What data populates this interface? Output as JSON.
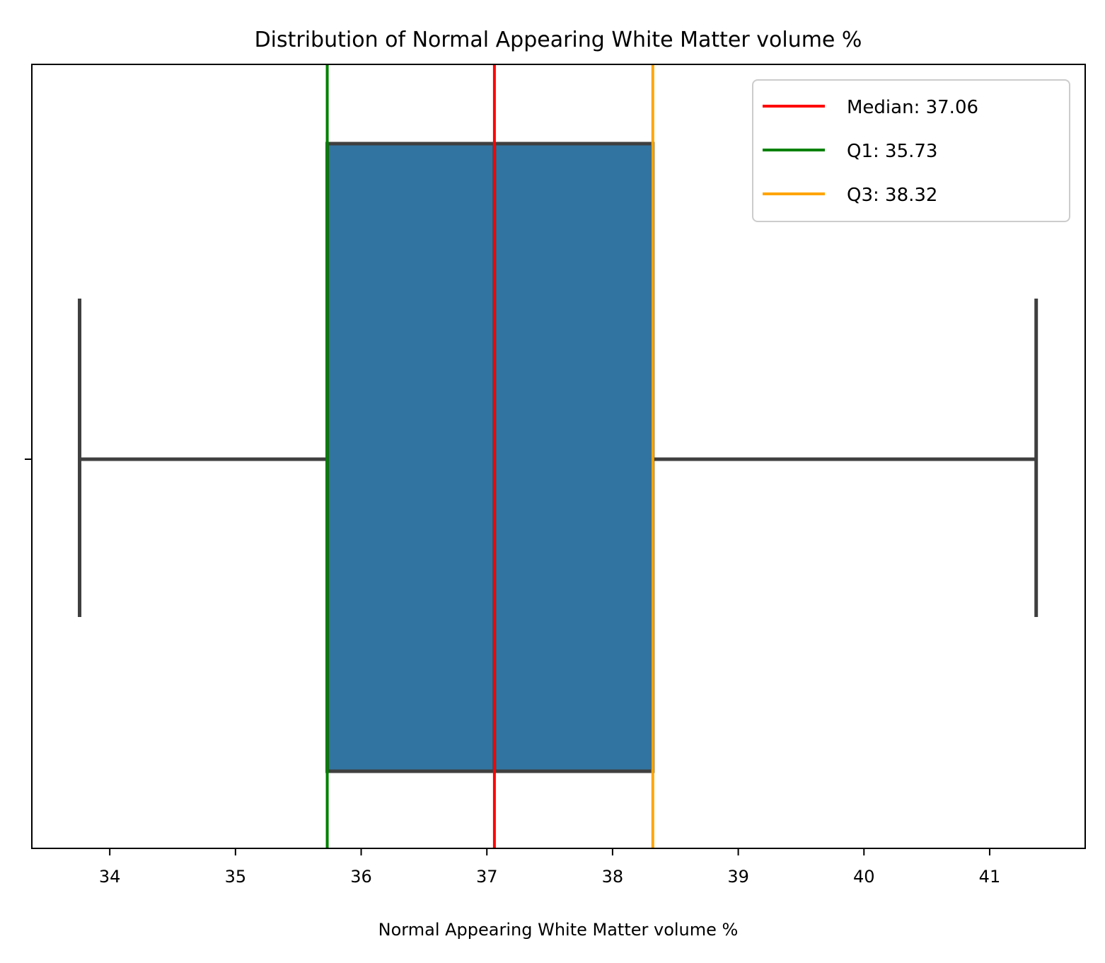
{
  "chart_data": {
    "type": "box",
    "title": "Distribution of Normal Appearing White Matter volume %",
    "xlabel": "Normal Appearing White Matter volume %",
    "ylabel": "",
    "xlim": [
      33.38,
      41.76
    ],
    "xticks": [
      34,
      35,
      36,
      37,
      38,
      39,
      40,
      41
    ],
    "grid": false,
    "legend_position": "top-right",
    "box": {
      "whisker_low": 33.76,
      "q1": 35.73,
      "median": 37.06,
      "q3": 38.32,
      "whisker_high": 41.37,
      "fill_color": "#3274a1",
      "line_color": "#3f3f3f"
    },
    "reference_lines": [
      {
        "name": "Median",
        "value": 37.06,
        "label": "Median: 37.06",
        "color": "#ff0000"
      },
      {
        "name": "Q1",
        "value": 35.73,
        "label": "Q1: 35.73",
        "color": "#008000"
      },
      {
        "name": "Q3",
        "value": 38.32,
        "label": "Q3: 38.32",
        "color": "#ffa500"
      }
    ]
  }
}
